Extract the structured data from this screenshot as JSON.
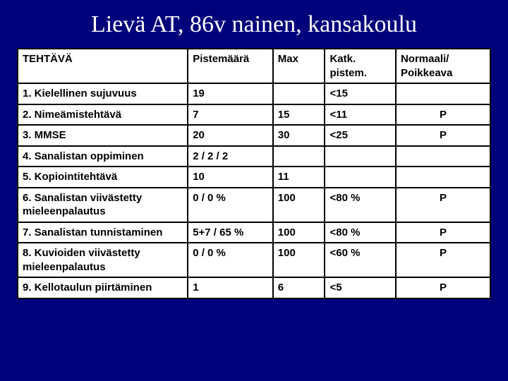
{
  "slide": {
    "background_color": "#00007b",
    "title": "Lievä AT, 86v nainen, kansakoulu",
    "title_color": "#ffffff",
    "title_fontsize": 34,
    "title_font": "Times New Roman"
  },
  "table": {
    "background_color": "#ffffff",
    "border_color": "#000000",
    "cell_font": "Arial",
    "cell_fontsize": 15,
    "cell_fontweight": "bold",
    "columns": [
      {
        "key": "task",
        "label": "TEHTÄVÄ",
        "width_pct": 36,
        "align": "left"
      },
      {
        "key": "score",
        "label": "Pistemäärä",
        "width_pct": 18,
        "align": "left"
      },
      {
        "key": "max",
        "label": "Max",
        "width_pct": 11,
        "align": "left"
      },
      {
        "key": "cutoff",
        "label": "Katk. pistem.",
        "width_pct": 15,
        "align": "left"
      },
      {
        "key": "norm",
        "label": "Normaali/ Poikkeava",
        "width_pct": 20,
        "align": "left"
      }
    ],
    "rows": [
      {
        "task": "1. Kielellinen sujuvuus",
        "score": "19",
        "max": "",
        "cutoff": "<15",
        "norm": ""
      },
      {
        "task": "2. Nimeämistehtävä",
        "score": "7",
        "max": "15",
        "cutoff": "<11",
        "norm": "P"
      },
      {
        "task": "3. MMSE",
        "score": "20",
        "max": "30",
        "cutoff": "<25",
        "norm": "P"
      },
      {
        "task": "4. Sanalistan oppiminen",
        "score": "2 / 2 / 2",
        "max": "",
        "cutoff": "",
        "norm": ""
      },
      {
        "task": "5. Kopiointitehtävä",
        "score": "10",
        "max": "11",
        "cutoff": "",
        "norm": ""
      },
      {
        "task": "6. Sanalistan viivästetty mieleenpalautus",
        "score": "0 / 0 %",
        "max": "100",
        "cutoff": "<80 %",
        "norm": "P"
      },
      {
        "task": "7. Sanalistan tunnistaminen",
        "score": "5+7 / 65 %",
        "max": "100",
        "cutoff": "<80 %",
        "norm": "P"
      },
      {
        "task": "8. Kuvioiden viivästetty mieleenpalautus",
        "score": "0 / 0 %",
        "max": "100",
        "cutoff": "<60 %",
        "norm": "P"
      },
      {
        "task": "9. Kellotaulun piirtäminen",
        "score": "1",
        "max": "6",
        "cutoff": "<5",
        "norm": "P"
      }
    ]
  }
}
